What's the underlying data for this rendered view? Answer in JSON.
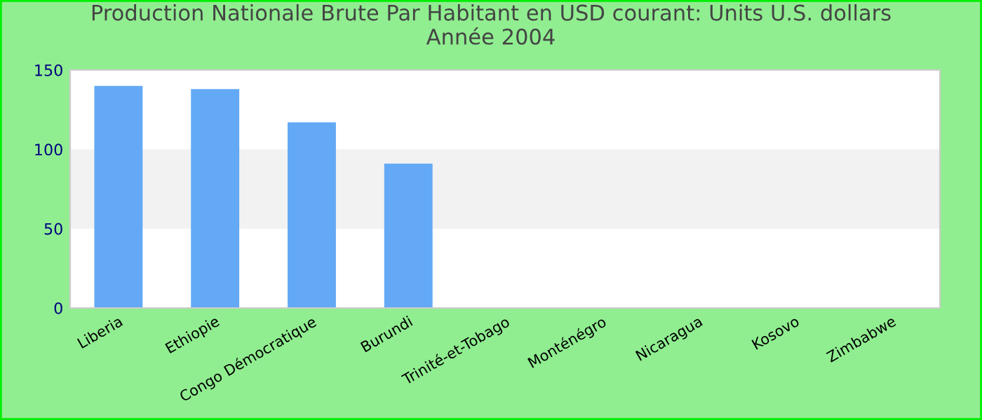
{
  "chart_data": {
    "type": "bar",
    "title": "Production Nationale Brute Par Habitant en USD courant: Units U.S. dollars\nAnnée 2004",
    "categories": [
      "Liberia",
      "Ethiopie",
      "Congo Démocratique",
      "Burundi",
      "Trinité-et-Tobago",
      "Monténégro",
      "Nicaragua",
      "Kosovo",
      "Zimbabwe"
    ],
    "values": [
      140,
      138,
      117,
      91,
      null,
      null,
      null,
      null,
      null
    ],
    "color": "#63a9f5",
    "ylim": [
      0,
      150
    ],
    "yticks": [
      0,
      50,
      100,
      150
    ],
    "grid": false,
    "bands": [
      {
        "axis": "y",
        "from": 50,
        "to": 100,
        "label": null,
        "color": "#f2f2f2"
      }
    ]
  }
}
